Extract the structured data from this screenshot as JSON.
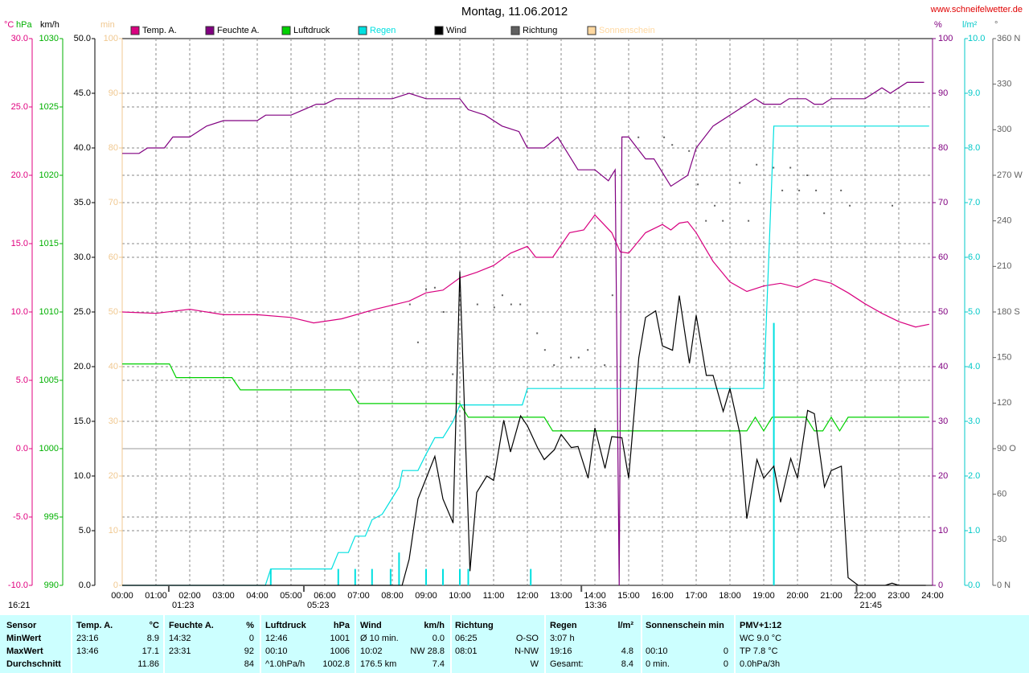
{
  "chart_data": {
    "type": "line",
    "title": "Montag, 11.06.2012",
    "source": "www.schneifelwetter.de",
    "xlim": [
      0,
      24
    ],
    "xticks": [
      {
        "value": 0,
        "label": "00:00"
      },
      {
        "value": 1,
        "label": "01:00"
      },
      {
        "value": 2,
        "label": "02:00"
      },
      {
        "value": 3,
        "label": "03:00"
      },
      {
        "value": 4,
        "label": "04:00"
      },
      {
        "value": 5,
        "label": "05:00"
      },
      {
        "value": 6,
        "label": "06:00"
      },
      {
        "value": 7,
        "label": "07:00"
      },
      {
        "value": 8,
        "label": "08:00"
      },
      {
        "value": 9,
        "label": "09:00"
      },
      {
        "value": 10,
        "label": "10:00"
      },
      {
        "value": 11,
        "label": "11:00"
      },
      {
        "value": 12,
        "label": "12:00"
      },
      {
        "value": 13,
        "label": "13:00"
      },
      {
        "value": 14,
        "label": "14:00"
      },
      {
        "value": 15,
        "label": "15:00"
      },
      {
        "value": 16,
        "label": "16:00"
      },
      {
        "value": 17,
        "label": "17:00"
      },
      {
        "value": 18,
        "label": "18:00"
      },
      {
        "value": 19,
        "label": "19:00"
      },
      {
        "value": 20,
        "label": "20:00"
      },
      {
        "value": 21,
        "label": "21:00"
      },
      {
        "value": 22,
        "label": "22:00"
      },
      {
        "value": 23,
        "label": "23:00"
      },
      {
        "value": 24,
        "label": "24:00"
      }
    ],
    "axes": [
      {
        "label": "°C",
        "color": "#e0007f",
        "grid": true,
        "ylim": [
          -10,
          30
        ],
        "yticks": [
          {
            "value": -10,
            "label": "-10.0"
          },
          {
            "value": -5,
            "label": "-5.0"
          },
          {
            "value": 0,
            "label": "0.0"
          },
          {
            "value": 5,
            "label": "5.0"
          },
          {
            "value": 10,
            "label": "10.0"
          },
          {
            "value": 15,
            "label": "15.0"
          },
          {
            "value": 20,
            "label": "20.0"
          },
          {
            "value": 25,
            "label": "25.0"
          },
          {
            "value": 30,
            "label": "30.0"
          }
        ]
      },
      {
        "label": "hPa",
        "color": "#00b000",
        "ylim": [
          990,
          1030
        ],
        "yticks": [
          990,
          995,
          1000,
          1005,
          1010,
          1015,
          1020,
          1025,
          1030
        ]
      },
      {
        "label": "km/h",
        "color": "#000000",
        "grid": true,
        "ylim": [
          0,
          50
        ],
        "yticks": [
          {
            "value": 0,
            "label": "0.0"
          },
          {
            "value": 5,
            "label": "5.0"
          },
          {
            "value": 10,
            "label": "10.0"
          },
          {
            "value": 15,
            "label": "15.0"
          },
          {
            "value": 20,
            "label": "20.0"
          },
          {
            "value": 25,
            "label": "25.0"
          },
          {
            "value": 30,
            "label": "30.0"
          },
          {
            "value": 35,
            "label": "35.0"
          },
          {
            "value": 40,
            "label": "40.0"
          },
          {
            "value": 45,
            "label": "45.0"
          },
          {
            "value": 50,
            "label": "50.0"
          }
        ]
      },
      {
        "label": "min",
        "color": "#f0c890",
        "ylim": [
          0,
          100
        ],
        "yticks": [
          0,
          10,
          20,
          30,
          40,
          50,
          60,
          70,
          80,
          90,
          100
        ]
      },
      {
        "label": "%",
        "color": "#800080",
        "ylim": [
          0,
          100
        ],
        "yticks": [
          0,
          10,
          20,
          30,
          40,
          50,
          60,
          70,
          80,
          90,
          100
        ]
      },
      {
        "label": "l/m²",
        "color": "#00c8c8",
        "ylim": [
          0,
          10
        ],
        "yticks": [
          {
            "value": 0,
            "label": "0.0"
          },
          {
            "value": 1,
            "label": "1.0"
          },
          {
            "value": 2,
            "label": "2.0"
          },
          {
            "value": 3,
            "label": "3.0"
          },
          {
            "value": 4,
            "label": "4.0"
          },
          {
            "value": 5,
            "label": "5.0"
          },
          {
            "value": 6,
            "label": "6.0"
          },
          {
            "value": 7,
            "label": "7.0"
          },
          {
            "value": 8,
            "label": "8.0"
          },
          {
            "value": 9,
            "label": "9.0"
          },
          {
            "value": 10,
            "label": "10.0"
          }
        ]
      },
      {
        "label": "°",
        "color": "#606060",
        "ylim": [
          0,
          360
        ],
        "yticks": [
          {
            "value": 0,
            "label": "0 N"
          },
          30,
          60,
          {
            "value": 90,
            "label": "90 O"
          },
          120,
          150,
          {
            "value": 180,
            "label": "180 S"
          },
          210,
          240,
          {
            "value": 270,
            "label": "270 W"
          },
          300,
          330,
          {
            "value": 360,
            "label": "360 N"
          }
        ]
      }
    ],
    "series": [
      {
        "name": "Temp. A.",
        "color": "#d8007f",
        "axis": "°C",
        "x": [
          0,
          1,
          2,
          3,
          4,
          5,
          5.67,
          6.5,
          7.5,
          8.5,
          9,
          9.5,
          10,
          10.5,
          11,
          11.5,
          12,
          12.25,
          12.75,
          13.25,
          13.67,
          14,
          14.5,
          14.75,
          15,
          15.5,
          16,
          16.25,
          16.5,
          16.75,
          17,
          17.5,
          18,
          18.5,
          19,
          19.5,
          20,
          20.5,
          21,
          21.5,
          22,
          22.5,
          23,
          23.5,
          23.9
        ],
        "values": [
          10.0,
          9.9,
          10.2,
          9.8,
          9.8,
          9.6,
          9.2,
          9.5,
          10.2,
          10.8,
          11.4,
          11.6,
          12.5,
          12.9,
          13.4,
          14.3,
          14.8,
          14.0,
          14.0,
          15.8,
          16.0,
          17.1,
          15.8,
          14.4,
          14.3,
          15.8,
          16.4,
          16.0,
          16.5,
          16.6,
          15.8,
          13.7,
          12.2,
          11.5,
          11.9,
          12.1,
          11.8,
          12.4,
          12.1,
          11.4,
          10.6,
          9.9,
          9.3,
          8.9,
          9.1
        ]
      },
      {
        "name": "Feuchte A.",
        "color": "#800080",
        "axis": "%",
        "x": [
          0,
          0.5,
          0.75,
          1.25,
          1.5,
          2,
          2.5,
          3,
          4,
          4.25,
          5,
          5.75,
          6,
          6.33,
          8,
          8.5,
          9,
          10,
          10.25,
          10.75,
          11.25,
          11.75,
          12,
          12.5,
          12.9,
          13.5,
          14,
          14.4,
          14.6,
          14.72,
          14.8,
          15,
          15.5,
          15.75,
          16.25,
          16.75,
          17,
          17.5,
          18,
          18.5,
          18.75,
          19,
          19.5,
          19.75,
          20.25,
          20.5,
          20.75,
          21,
          22,
          22.5,
          22.75,
          23.25,
          23.75
        ],
        "values": [
          79,
          79,
          80,
          80,
          82,
          82,
          84,
          85,
          85,
          86,
          86,
          88,
          88,
          89,
          89,
          90,
          89,
          89,
          87,
          86,
          84,
          83,
          80,
          80,
          82,
          76,
          76,
          74,
          76,
          0,
          82,
          82,
          78,
          78,
          73,
          75,
          80,
          84,
          86,
          88,
          89,
          88,
          88,
          89,
          89,
          88,
          88,
          89,
          89,
          91,
          90,
          92,
          92
        ]
      },
      {
        "name": "Luftdruck",
        "color": "#00d000",
        "axis": "hPa",
        "x": [
          0,
          1.4,
          1.6,
          3.25,
          3.5,
          6.75,
          7.0,
          10.0,
          10.25,
          12.5,
          12.75,
          18.5,
          18.75,
          19.0,
          19.25,
          20.25,
          20.5,
          20.75,
          21.0,
          21.25,
          21.5,
          23.9
        ],
        "values": [
          1006.2,
          1006.2,
          1005.2,
          1005.2,
          1004.3,
          1004.3,
          1003.3,
          1003.3,
          1002.3,
          1002.3,
          1001.3,
          1001.3,
          1002.3,
          1001.3,
          1002.3,
          1002.3,
          1001.3,
          1001.3,
          1002.3,
          1001.3,
          1002.3,
          1002.3
        ]
      },
      {
        "name": "Regen",
        "color": "#00e0e0",
        "axis": "l/m²",
        "x": [
          0,
          4.24,
          4.4,
          6.2,
          6.4,
          6.7,
          6.9,
          7.2,
          7.4,
          7.7,
          7.9,
          8.2,
          8.3,
          8.76,
          9.0,
          9.26,
          9.5,
          9.8,
          10.0,
          11.85,
          12.0,
          19.0,
          19.3,
          23.9
        ],
        "values": [
          0,
          0,
          0.3,
          0.3,
          0.6,
          0.6,
          0.9,
          0.9,
          1.2,
          1.3,
          1.5,
          1.8,
          2.1,
          2.1,
          2.4,
          2.7,
          2.7,
          3.0,
          3.3,
          3.3,
          3.6,
          3.6,
          8.4,
          8.4
        ],
        "bar_x": [
          4.4,
          6.4,
          6.9,
          7.4,
          7.95,
          8.2,
          9.0,
          9.5,
          10.0,
          10.25,
          12.1,
          19.3
        ],
        "bar_values": [
          0.3,
          0.3,
          0.3,
          0.3,
          0.3,
          0.6,
          0.3,
          0.3,
          0.3,
          0.3,
          0.3,
          4.8
        ]
      },
      {
        "name": "Wind",
        "color": "#000000",
        "axis": "km/h",
        "x": [
          0,
          8.29,
          8.5,
          8.76,
          9.26,
          9.5,
          9.8,
          10.0,
          10.3,
          10.5,
          10.8,
          11.0,
          11.3,
          11.5,
          11.8,
          12.0,
          12.3,
          12.5,
          12.8,
          13.0,
          13.3,
          13.5,
          13.8,
          14.0,
          14.3,
          14.5,
          14.8,
          15.0,
          15.3,
          15.5,
          15.8,
          16.0,
          16.3,
          16.5,
          16.8,
          17.0,
          17.3,
          17.5,
          17.8,
          18.0,
          18.3,
          18.5,
          18.8,
          19.0,
          19.3,
          19.5,
          19.8,
          20.0,
          20.3,
          20.5,
          20.8,
          21.0,
          21.3,
          21.5,
          21.8,
          22.6,
          22.8,
          23.0,
          23.8
        ],
        "values": [
          0,
          0,
          2.4,
          7.9,
          11.8,
          7.9,
          5.7,
          28.7,
          1.3,
          8.5,
          10.0,
          9.6,
          15.1,
          12.2,
          15.5,
          14.6,
          12.6,
          11.5,
          12.4,
          13.8,
          12.6,
          12.7,
          9.8,
          14.4,
          10.7,
          13.6,
          13.5,
          9.8,
          20.8,
          24.5,
          25.1,
          21.9,
          21.5,
          26.5,
          20.3,
          24.7,
          19.2,
          19.2,
          15.9,
          18.0,
          13.8,
          6.1,
          11.5,
          9.8,
          10.9,
          7.6,
          11.6,
          9.8,
          16.0,
          15.7,
          9.0,
          10.5,
          10.9,
          0.7,
          0,
          0,
          0.2,
          0,
          0
        ]
      },
      {
        "name": "Richtung",
        "color": "#606060",
        "axis": "°",
        "type": "scatter",
        "x": [
          8.52,
          8.76,
          9.0,
          9.26,
          9.52,
          9.79,
          10.52,
          11.02,
          11.26,
          11.52,
          11.79,
          12.29,
          12.52,
          12.79,
          13.29,
          13.52,
          13.79,
          14.29,
          14.52,
          15.29,
          16.05,
          16.29,
          16.79,
          17.05,
          17.29,
          17.55,
          17.79,
          18.29,
          18.55,
          18.79,
          19.29,
          19.55,
          19.79,
          20.05,
          20.29,
          20.55,
          20.79,
          21.29,
          21.55,
          22.81
        ],
        "values": [
          185,
          160,
          195,
          196,
          180,
          139,
          185,
          183,
          191,
          185,
          185,
          166,
          155,
          145,
          150,
          150,
          155,
          145,
          191,
          295,
          295,
          290,
          286,
          264,
          240,
          250,
          240,
          265,
          240,
          277,
          275,
          260,
          275,
          260,
          270,
          260,
          245,
          260,
          250,
          250
        ]
      },
      {
        "name": "Sonnenschein",
        "color": "#ffd8a0",
        "axis": "min",
        "x": [],
        "values": []
      }
    ],
    "annotations": [
      {
        "x": 1.38,
        "label": "01:23"
      },
      {
        "x": 5.38,
        "label": "05:23"
      },
      {
        "x": 13.6,
        "label": "13:36"
      },
      {
        "x": 21.75,
        "label": "21:45"
      }
    ],
    "corner_note": "16:21"
  },
  "table": {
    "header": [
      "Sensor",
      "Temp. A.",
      "°C",
      "Feuchte A.",
      "%",
      "Luftdruck",
      "hPa",
      "Wind",
      "km/h",
      "Richtung",
      null,
      "Regen",
      "l/m²",
      "Sonnenschein min",
      null,
      "PMV+1:12"
    ],
    "rows": [
      [
        "MinWert",
        "23:16",
        "8.9",
        "14:32",
        "0",
        "12:46",
        "1001",
        "Ø 10 min.",
        "0.0",
        "06:25",
        "O-SO",
        "3:07 h",
        null,
        null,
        null,
        "WC 9.0 °C"
      ],
      [
        "MaxWert",
        "13:46",
        "17.1",
        "23:31",
        "92",
        "00:10",
        "1006",
        "10:02",
        "NW 28.8",
        "08:01",
        "N-NW",
        "19:16",
        "4.8",
        "00:10",
        "0",
        "TP 7.8 °C"
      ],
      [
        "Durchschnitt",
        null,
        "11.86",
        null,
        "84",
        "^1.0hPa/h",
        "1002.8",
        "176.5 km",
        "7.4",
        null,
        "W",
        "Gesamt:",
        "8.4",
        "0 min.",
        "0",
        "0.0hPa/3h"
      ]
    ]
  }
}
